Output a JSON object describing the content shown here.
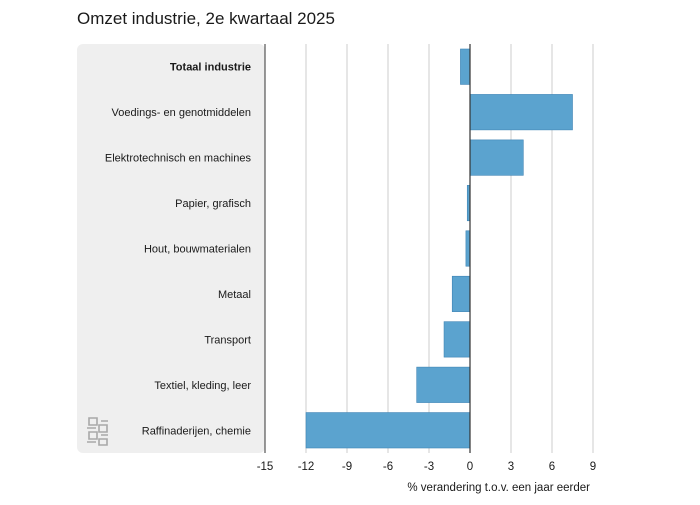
{
  "chart_data": {
    "type": "bar",
    "orientation": "horizontal",
    "title": "Omzet industrie, 2e kwartaal 2025",
    "xlabel": "% verandering t.o.v. een jaar eerder",
    "ylabel": "",
    "categories": [
      "Totaal industrie",
      "Voedings- en genotmiddelen",
      "Elektrotechnisch en machines",
      "Papier, grafisch",
      "Hout, bouwmaterialen",
      "Metaal",
      "Transport",
      "Textiel, kleding, leer",
      "Raffinaderijen, chemie"
    ],
    "highlighted_category": "Totaal industrie",
    "values": [
      -0.7,
      7.5,
      3.9,
      -0.2,
      -0.3,
      -1.3,
      -1.9,
      -3.9,
      -12.0
    ],
    "xlim": [
      -15,
      9
    ],
    "xticks": [
      -15,
      -12,
      -9,
      -6,
      -3,
      0,
      3,
      6,
      9
    ],
    "grid": true,
    "bar_color": "#5ba3cf"
  }
}
